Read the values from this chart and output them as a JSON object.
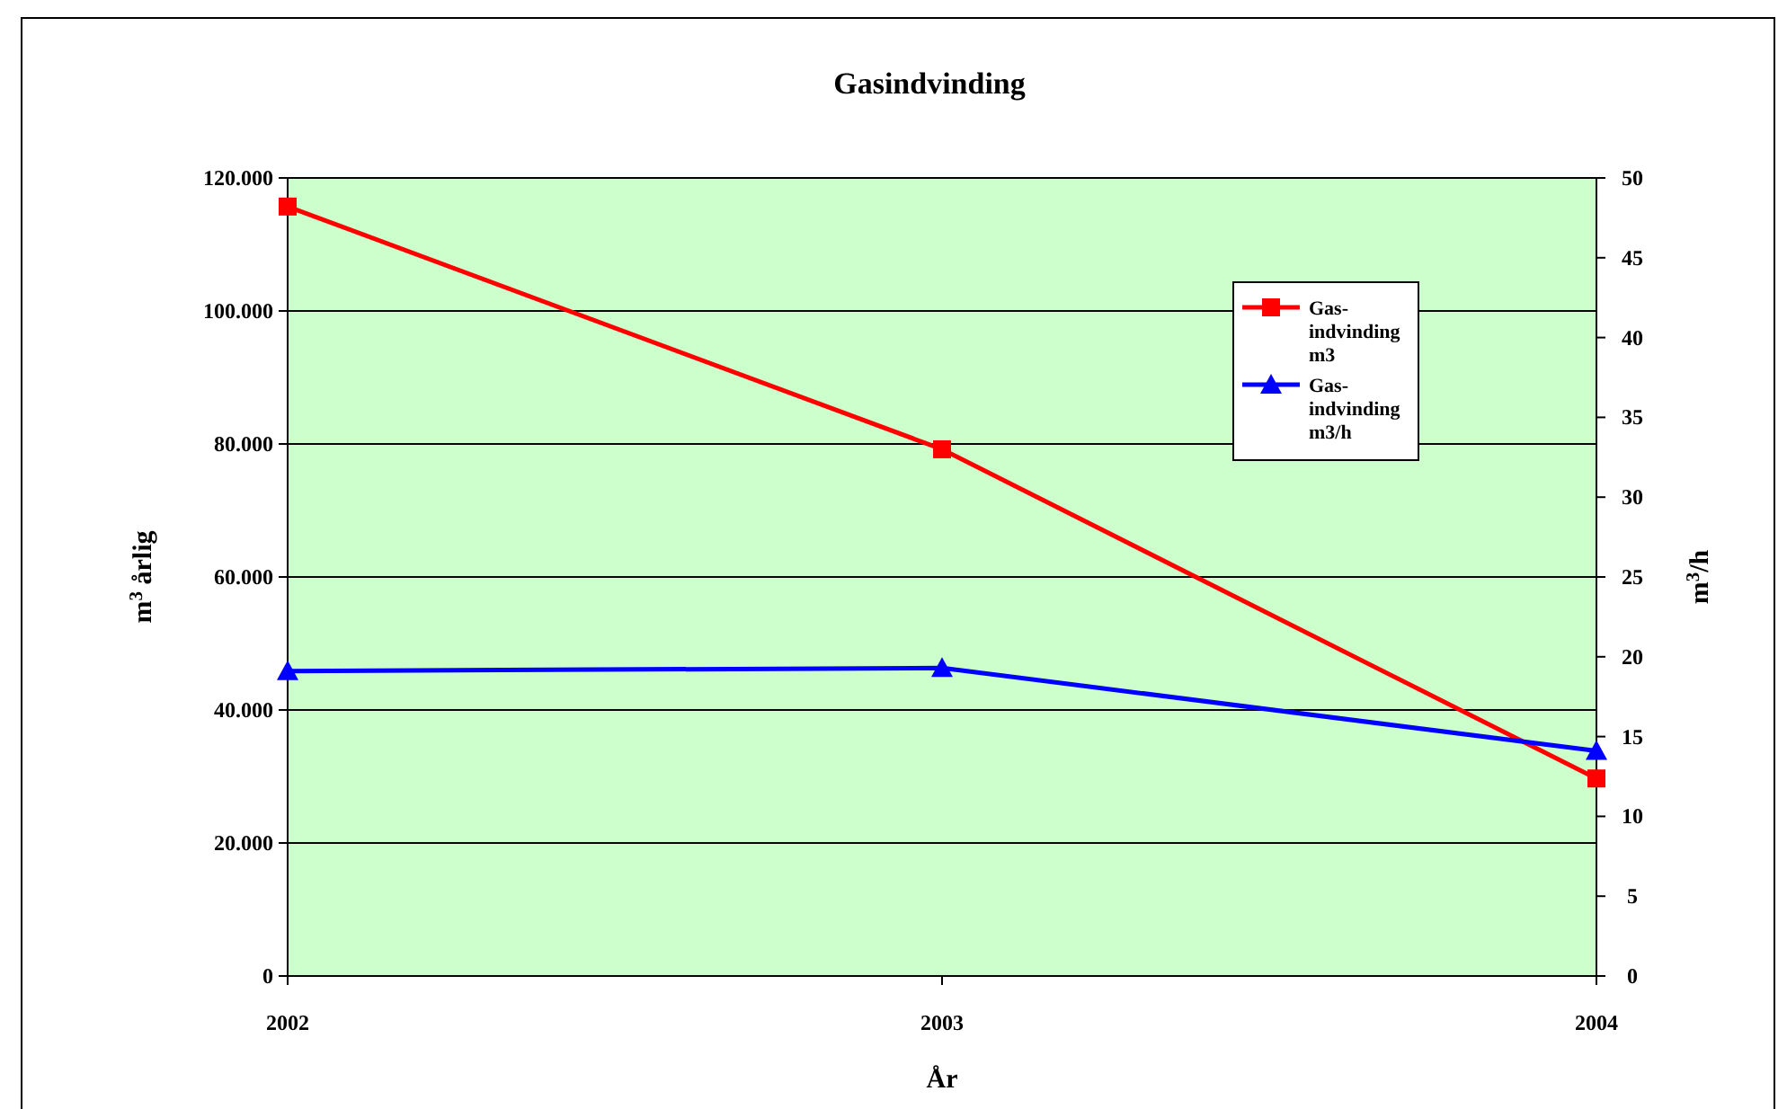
{
  "chart_data": {
    "type": "line",
    "title": "Gasindvinding",
    "xlabel": "År",
    "ylabel": "m$^{3}$ årlig",
    "y2label": "m$^{3}$/h",
    "categories": [
      "2002",
      "2003",
      "2004"
    ],
    "series": [
      {
        "name": "Gas-indvinding m3",
        "color": "#ff0000",
        "marker": "square",
        "values": [
          115700,
          79200,
          29700
        ]
      },
      {
        "name": "Gas-indvinding m3/h",
        "color": "#0000ff",
        "marker": "triangle",
        "axis": "y2",
        "values": [
          19.1,
          19.3,
          14.1
        ]
      }
    ],
    "ylim": [
      0,
      120000
    ],
    "yticks": [
      {
        "value": 0,
        "label": "0"
      },
      {
        "value": 20000,
        "label": "20.000"
      },
      {
        "value": 40000,
        "label": "40.000"
      },
      {
        "value": 60000,
        "label": "60.000"
      },
      {
        "value": 80000,
        "label": "80.000"
      },
      {
        "value": 100000,
        "label": "100.000"
      },
      {
        "value": 120000,
        "label": "120.000"
      }
    ],
    "y2lim": [
      0,
      50
    ],
    "y2ticks": [
      0,
      5,
      10,
      15,
      20,
      25,
      30,
      35,
      40,
      45,
      50
    ],
    "grid": "y",
    "legend": "top right",
    "line_style": "solid"
  }
}
